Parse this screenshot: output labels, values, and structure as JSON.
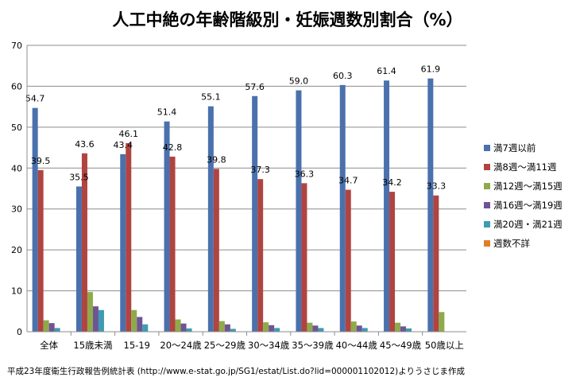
{
  "chart_data": {
    "type": "bar",
    "title": "人工中絶の年齢階級別・妊娠週数別割合（%）",
    "xlabel": "",
    "ylabel": "",
    "ylim": [
      0,
      70
    ],
    "yticks": [
      0,
      10,
      20,
      30,
      40,
      50,
      60,
      70
    ],
    "grid": true,
    "legend_position": "right",
    "categories": [
      "全体",
      "15歳未満",
      "15-19",
      "20～24歳",
      "25～29歳",
      "30～34歳",
      "35～39歳",
      "40～44歳",
      "45～49歳",
      "50歳以上"
    ],
    "series": [
      {
        "name": "満7週以前",
        "color": "#4a71ad",
        "values": [
          54.7,
          35.5,
          43.4,
          51.4,
          55.1,
          57.6,
          59.0,
          60.3,
          61.4,
          61.9
        ],
        "labeled": true
      },
      {
        "name": "満8週～満11週",
        "color": "#b04440",
        "values": [
          39.5,
          43.6,
          46.1,
          42.8,
          39.8,
          37.3,
          36.3,
          34.7,
          34.2,
          33.3
        ],
        "labeled": true
      },
      {
        "name": "満12週～満15週",
        "color": "#8faa4a",
        "values": [
          2.8,
          9.7,
          5.3,
          3.0,
          2.6,
          2.3,
          2.2,
          2.5,
          2.2,
          4.8
        ],
        "labeled": false
      },
      {
        "name": "満16週～満19週",
        "color": "#6e5495",
        "values": [
          2.1,
          6.2,
          3.6,
          2.0,
          1.8,
          1.6,
          1.5,
          1.5,
          1.3,
          0.0
        ],
        "labeled": false
      },
      {
        "name": "満20週・満21週",
        "color": "#3e9bb3",
        "values": [
          0.9,
          5.3,
          1.8,
          0.8,
          0.7,
          0.9,
          0.9,
          0.9,
          0.8,
          0.0
        ],
        "labeled": false
      },
      {
        "name": "週数不詳",
        "color": "#e07f2a",
        "values": [
          0.0,
          0.0,
          0.0,
          0.0,
          0.0,
          0.0,
          0.0,
          0.0,
          0.0,
          0.0
        ],
        "labeled": false
      }
    ]
  },
  "source_note": "平成23年度衛生行政報告例統計表 (http://www.e-stat.go.jp/SG1/estat/List.do?lid=000001102012)よりうさじま作成"
}
